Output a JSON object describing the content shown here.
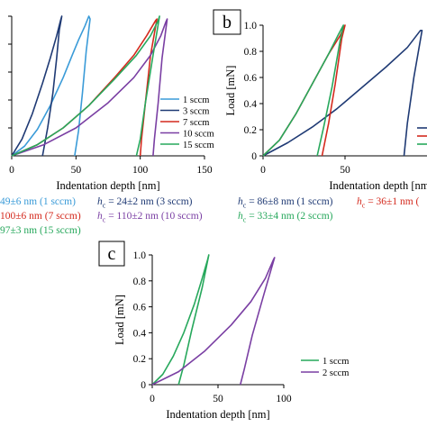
{
  "panels": {
    "b": {
      "label": "b"
    },
    "c": {
      "label": "c"
    }
  },
  "colors": {
    "blue_light": "#3a9bd8",
    "navy": "#1f3a74",
    "red": "#d42a1e",
    "green": "#27a85c",
    "purple": "#7a3fa3"
  },
  "annotations": {
    "a_row1_1": "49±6 nm (1 sccm)",
    "a_row1_2_hc": "h",
    "a_row1_2_sub": "c",
    "a_row1_2_rest": " = 24±2 nm (3 sccm)",
    "a_row2_1": "100±6 nm (7 sccm)",
    "a_row2_2_hc": "h",
    "a_row2_2_sub": "c",
    "a_row2_2_rest": " = 110±2 nm (10 sccm)",
    "a_row3_1": "97±3 nm (15 sccm)",
    "b_row1_1_hc": "h",
    "b_row1_1_sub": "c",
    "b_row1_1_rest": " = 86±8 nm (1 sccm)",
    "b_row1_2_hc": "h",
    "b_row1_2_sub": "c",
    "b_row1_2_rest": " = 36±1 nm (",
    "b_row2_1_hc": "h",
    "b_row2_1_sub": "c",
    "b_row2_1_rest": " = 33±4 nm (2 sccm)"
  },
  "chart_data": [
    {
      "panel": "a",
      "type": "line",
      "xlabel": "Indentation depth [nm]",
      "ylabel": "",
      "xlim": [
        0,
        150
      ],
      "ylim": [
        0,
        1.0
      ],
      "xticks": [
        0,
        50,
        100,
        150
      ],
      "legend_position": "right",
      "series": [
        {
          "name": "1 sccm",
          "color": "#3a9bd8",
          "x": [
            0,
            10,
            20,
            30,
            40,
            47,
            52,
            57,
            60,
            61,
            58,
            55,
            52,
            49
          ],
          "y": [
            0,
            0.07,
            0.19,
            0.36,
            0.56,
            0.72,
            0.83,
            0.93,
            1.0,
            0.98,
            0.75,
            0.45,
            0.18,
            0
          ]
        },
        {
          "name": "3 sccm",
          "color": "#1f3a74",
          "x": [
            0,
            8,
            16,
            24,
            30,
            35,
            38,
            39,
            37,
            35,
            32,
            28,
            24
          ],
          "y": [
            0,
            0.12,
            0.3,
            0.52,
            0.7,
            0.86,
            0.97,
            1.0,
            0.9,
            0.7,
            0.45,
            0.2,
            0
          ]
        },
        {
          "name": "7 sccm",
          "color": "#d42a1e",
          "x": [
            0,
            20,
            40,
            60,
            80,
            95,
            105,
            112,
            113,
            108,
            104,
            101,
            100
          ],
          "y": [
            0,
            0.08,
            0.2,
            0.36,
            0.56,
            0.72,
            0.86,
            0.97,
            0.98,
            0.72,
            0.38,
            0.12,
            0
          ]
        },
        {
          "name": "10 sccm",
          "color": "#7a3fa3",
          "x": [
            0,
            25,
            50,
            75,
            95,
            108,
            116,
            120,
            121,
            117,
            114,
            111,
            110
          ],
          "y": [
            0,
            0.08,
            0.2,
            0.38,
            0.56,
            0.72,
            0.86,
            0.96,
            0.98,
            0.7,
            0.38,
            0.12,
            0
          ]
        },
        {
          "name": "15 sccm",
          "color": "#27a85c",
          "x": [
            0,
            20,
            40,
            60,
            80,
            97,
            108,
            114,
            115,
            110,
            104,
            100,
            97
          ],
          "y": [
            0,
            0.08,
            0.2,
            0.36,
            0.55,
            0.72,
            0.86,
            0.97,
            1.0,
            0.72,
            0.38,
            0.12,
            0
          ]
        }
      ]
    },
    {
      "panel": "b",
      "type": "line",
      "xlabel": "Indentation depth [nm]",
      "ylabel": "Load [mN]",
      "xlim": [
        0,
        100
      ],
      "ylim": [
        0,
        1.0
      ],
      "xticks": [
        0,
        50
      ],
      "yticks": [
        0,
        0.2,
        0.4,
        0.6,
        0.8,
        1.0
      ],
      "series": [
        {
          "name": "1 sccm",
          "color": "#1f3a74",
          "x": [
            0,
            15,
            30,
            45,
            60,
            75,
            88,
            96,
            97,
            92,
            88,
            86
          ],
          "y": [
            0,
            0.1,
            0.22,
            0.36,
            0.52,
            0.68,
            0.83,
            0.96,
            0.96,
            0.6,
            0.25,
            0
          ]
        },
        {
          "name": "",
          "color": "#d42a1e",
          "x": [
            0,
            10,
            20,
            30,
            40,
            47,
            50,
            48,
            44,
            40,
            36
          ],
          "y": [
            0,
            0.12,
            0.32,
            0.55,
            0.78,
            0.92,
            1.0,
            0.9,
            0.55,
            0.25,
            0
          ]
        },
        {
          "name": "2 sccm",
          "color": "#27a85c",
          "x": [
            0,
            10,
            20,
            30,
            40,
            46,
            49,
            47,
            42,
            37,
            33
          ],
          "y": [
            0,
            0.12,
            0.32,
            0.55,
            0.78,
            0.93,
            1.0,
            0.88,
            0.52,
            0.22,
            0
          ]
        }
      ]
    },
    {
      "panel": "c",
      "type": "line",
      "xlabel": "Indentation depth [nm]",
      "ylabel": "Load [mN]",
      "xlim": [
        0,
        100
      ],
      "ylim": [
        0,
        1.0
      ],
      "xticks": [
        0,
        50,
        100
      ],
      "yticks": [
        0,
        0.2,
        0.4,
        0.6,
        0.8,
        1.0
      ],
      "legend_position": "bottom-right",
      "series": [
        {
          "name": "1 sccm",
          "color": "#27a85c",
          "x": [
            0,
            8,
            16,
            24,
            32,
            38,
            42,
            43,
            38,
            30,
            24,
            20
          ],
          "y": [
            0,
            0.08,
            0.22,
            0.4,
            0.62,
            0.82,
            0.96,
            1.0,
            0.75,
            0.42,
            0.15,
            0
          ]
        },
        {
          "name": "2 sccm",
          "color": "#7a3fa3",
          "x": [
            0,
            20,
            40,
            60,
            75,
            86,
            92,
            93,
            85,
            76,
            70,
            67
          ],
          "y": [
            0,
            0.1,
            0.26,
            0.46,
            0.64,
            0.82,
            0.96,
            0.98,
            0.7,
            0.38,
            0.12,
            0
          ]
        }
      ]
    }
  ]
}
